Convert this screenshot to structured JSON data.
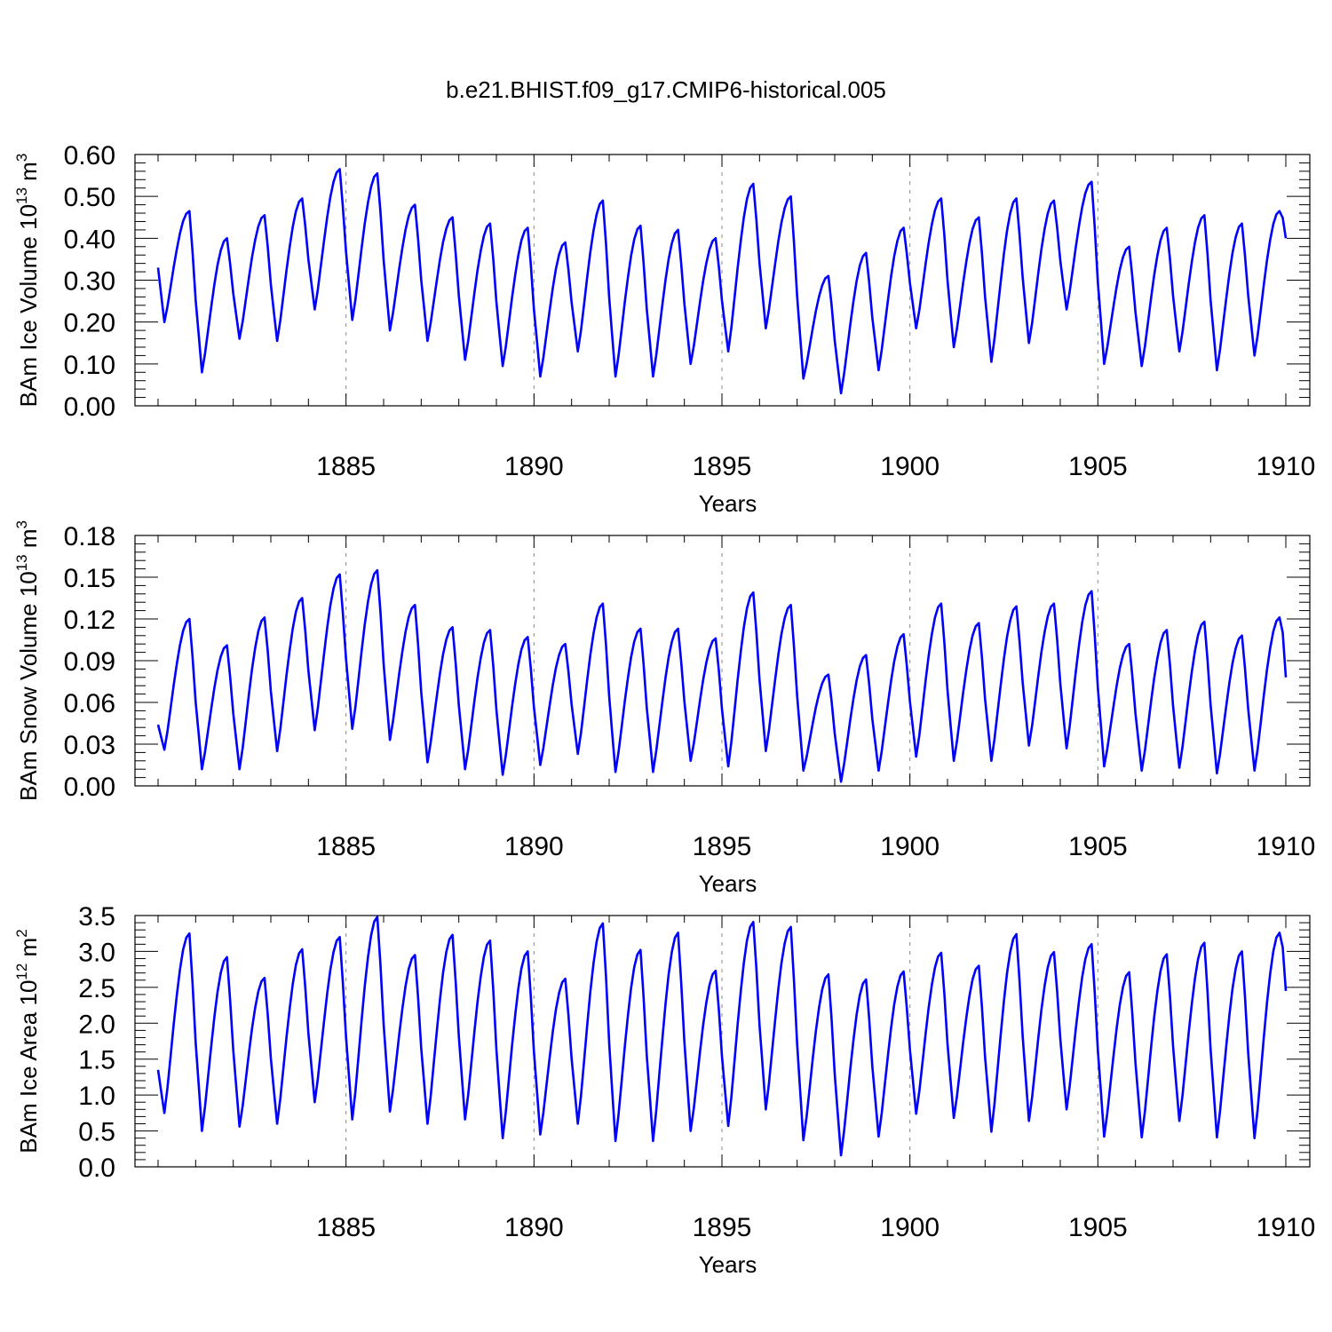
{
  "figure": {
    "title": "b.e21.BHIST.f09_g17.CMIP6-historical.005"
  },
  "chart_data": [
    {
      "type": "line",
      "panel": "ice-volume",
      "ylabel": {
        "main": "BAm Ice Volume 10",
        "exp": "13",
        "unit": " m",
        "unit_exp": "3"
      },
      "xlabel": "Years",
      "xlim": [
        1880.0,
        1910.0
      ],
      "ylim": [
        0.0,
        0.6
      ],
      "yticks": [
        "0.00",
        "0.10",
        "0.20",
        "0.30",
        "0.40",
        "0.50",
        "0.60"
      ],
      "xticks": [
        "1885",
        "1890",
        "1895",
        "1900",
        "1905",
        "1910"
      ],
      "grid": "dashed vertical at labeled years",
      "series": [
        {
          "name": "ice volume",
          "color": "#0000ff",
          "cycles": [
            {
              "year": 1880,
              "peak": 0.465,
              "trough": 0.2
            },
            {
              "year": 1881,
              "peak": 0.4,
              "trough": 0.08
            },
            {
              "year": 1882,
              "peak": 0.455,
              "trough": 0.16
            },
            {
              "year": 1883,
              "peak": 0.495,
              "trough": 0.155
            },
            {
              "year": 1884,
              "peak": 0.565,
              "trough": 0.23
            },
            {
              "year": 1885,
              "peak": 0.555,
              "trough": 0.205
            },
            {
              "year": 1886,
              "peak": 0.48,
              "trough": 0.18
            },
            {
              "year": 1887,
              "peak": 0.45,
              "trough": 0.155
            },
            {
              "year": 1888,
              "peak": 0.435,
              "trough": 0.11
            },
            {
              "year": 1889,
              "peak": 0.425,
              "trough": 0.095
            },
            {
              "year": 1890,
              "peak": 0.39,
              "trough": 0.07
            },
            {
              "year": 1891,
              "peak": 0.49,
              "trough": 0.13
            },
            {
              "year": 1892,
              "peak": 0.43,
              "trough": 0.07
            },
            {
              "year": 1893,
              "peak": 0.42,
              "trough": 0.07
            },
            {
              "year": 1894,
              "peak": 0.4,
              "trough": 0.1
            },
            {
              "year": 1895,
              "peak": 0.53,
              "trough": 0.13
            },
            {
              "year": 1896,
              "peak": 0.5,
              "trough": 0.185
            },
            {
              "year": 1897,
              "peak": 0.31,
              "trough": 0.065
            },
            {
              "year": 1898,
              "peak": 0.365,
              "trough": 0.03
            },
            {
              "year": 1899,
              "peak": 0.425,
              "trough": 0.085
            },
            {
              "year": 1900,
              "peak": 0.495,
              "trough": 0.185
            },
            {
              "year": 1901,
              "peak": 0.45,
              "trough": 0.14
            },
            {
              "year": 1902,
              "peak": 0.495,
              "trough": 0.105
            },
            {
              "year": 1903,
              "peak": 0.49,
              "trough": 0.15
            },
            {
              "year": 1904,
              "peak": 0.535,
              "trough": 0.23
            },
            {
              "year": 1905,
              "peak": 0.38,
              "trough": 0.1
            },
            {
              "year": 1906,
              "peak": 0.425,
              "trough": 0.095
            },
            {
              "year": 1907,
              "peak": 0.455,
              "trough": 0.13
            },
            {
              "year": 1908,
              "peak": 0.435,
              "trough": 0.085
            },
            {
              "year": 1909,
              "peak": 0.465,
              "trough": 0.12
            }
          ],
          "start": 0.33,
          "end": 0.4
        }
      ]
    },
    {
      "type": "line",
      "panel": "snow-volume",
      "ylabel": {
        "main": "BAm Snow Volume 10",
        "exp": "13",
        "unit": " m",
        "unit_exp": "3"
      },
      "xlabel": "Years",
      "xlim": [
        1880.0,
        1910.0
      ],
      "ylim": [
        0.0,
        0.18
      ],
      "yticks": [
        "0.00",
        "0.03",
        "0.06",
        "0.09",
        "0.12",
        "0.15",
        "0.18"
      ],
      "xticks": [
        "1885",
        "1890",
        "1895",
        "1900",
        "1905",
        "1910"
      ],
      "grid": "dashed vertical at labeled years",
      "series": [
        {
          "name": "snow volume",
          "color": "#0000ff",
          "cycles": [
            {
              "year": 1880,
              "peak": 0.12,
              "trough": 0.026
            },
            {
              "year": 1881,
              "peak": 0.101,
              "trough": 0.012
            },
            {
              "year": 1882,
              "peak": 0.121,
              "trough": 0.012
            },
            {
              "year": 1883,
              "peak": 0.135,
              "trough": 0.025
            },
            {
              "year": 1884,
              "peak": 0.152,
              "trough": 0.04
            },
            {
              "year": 1885,
              "peak": 0.155,
              "trough": 0.041
            },
            {
              "year": 1886,
              "peak": 0.13,
              "trough": 0.033
            },
            {
              "year": 1887,
              "peak": 0.114,
              "trough": 0.017
            },
            {
              "year": 1888,
              "peak": 0.112,
              "trough": 0.012
            },
            {
              "year": 1889,
              "peak": 0.107,
              "trough": 0.008
            },
            {
              "year": 1890,
              "peak": 0.102,
              "trough": 0.015
            },
            {
              "year": 1891,
              "peak": 0.131,
              "trough": 0.023
            },
            {
              "year": 1892,
              "peak": 0.113,
              "trough": 0.01
            },
            {
              "year": 1893,
              "peak": 0.113,
              "trough": 0.01
            },
            {
              "year": 1894,
              "peak": 0.106,
              "trough": 0.018
            },
            {
              "year": 1895,
              "peak": 0.139,
              "trough": 0.014
            },
            {
              "year": 1896,
              "peak": 0.13,
              "trough": 0.025
            },
            {
              "year": 1897,
              "peak": 0.08,
              "trough": 0.011
            },
            {
              "year": 1898,
              "peak": 0.094,
              "trough": 0.003
            },
            {
              "year": 1899,
              "peak": 0.109,
              "trough": 0.011
            },
            {
              "year": 1900,
              "peak": 0.131,
              "trough": 0.021
            },
            {
              "year": 1901,
              "peak": 0.117,
              "trough": 0.018
            },
            {
              "year": 1902,
              "peak": 0.129,
              "trough": 0.018
            },
            {
              "year": 1903,
              "peak": 0.131,
              "trough": 0.029
            },
            {
              "year": 1904,
              "peak": 0.14,
              "trough": 0.027
            },
            {
              "year": 1905,
              "peak": 0.102,
              "trough": 0.014
            },
            {
              "year": 1906,
              "peak": 0.112,
              "trough": 0.011
            },
            {
              "year": 1907,
              "peak": 0.118,
              "trough": 0.013
            },
            {
              "year": 1908,
              "peak": 0.108,
              "trough": 0.009
            },
            {
              "year": 1909,
              "peak": 0.121,
              "trough": 0.011
            }
          ],
          "start": 0.044,
          "end": 0.078
        }
      ]
    },
    {
      "type": "line",
      "panel": "ice-area",
      "ylabel": {
        "main": "BAm Ice Area 10",
        "exp": "12",
        "unit": " m",
        "unit_exp": "2"
      },
      "xlabel": "Years",
      "xlim": [
        1880.0,
        1910.0
      ],
      "ylim": [
        0.0,
        3.5
      ],
      "yticks": [
        "0.0",
        "0.5",
        "1.0",
        "1.5",
        "2.0",
        "2.5",
        "3.0",
        "3.5"
      ],
      "xticks": [
        "1885",
        "1890",
        "1895",
        "1900",
        "1905",
        "1910"
      ],
      "grid": "dashed vertical at labeled years",
      "series": [
        {
          "name": "ice area",
          "color": "#0000ff",
          "cycles": [
            {
              "year": 1880,
              "peak": 3.25,
              "trough": 0.75
            },
            {
              "year": 1881,
              "peak": 2.92,
              "trough": 0.5
            },
            {
              "year": 1882,
              "peak": 2.63,
              "trough": 0.56
            },
            {
              "year": 1883,
              "peak": 3.03,
              "trough": 0.6
            },
            {
              "year": 1884,
              "peak": 3.2,
              "trough": 0.9
            },
            {
              "year": 1885,
              "peak": 3.48,
              "trough": 0.66
            },
            {
              "year": 1886,
              "peak": 2.95,
              "trough": 0.77
            },
            {
              "year": 1887,
              "peak": 3.23,
              "trough": 0.6
            },
            {
              "year": 1888,
              "peak": 3.15,
              "trough": 0.66
            },
            {
              "year": 1889,
              "peak": 3.0,
              "trough": 0.4
            },
            {
              "year": 1890,
              "peak": 2.62,
              "trough": 0.45
            },
            {
              "year": 1891,
              "peak": 3.39,
              "trough": 0.6
            },
            {
              "year": 1892,
              "peak": 3.02,
              "trough": 0.36
            },
            {
              "year": 1893,
              "peak": 3.26,
              "trough": 0.36
            },
            {
              "year": 1894,
              "peak": 2.73,
              "trough": 0.5
            },
            {
              "year": 1895,
              "peak": 3.41,
              "trough": 0.57
            },
            {
              "year": 1896,
              "peak": 3.34,
              "trough": 0.8
            },
            {
              "year": 1897,
              "peak": 2.68,
              "trough": 0.37
            },
            {
              "year": 1898,
              "peak": 2.61,
              "trough": 0.16
            },
            {
              "year": 1899,
              "peak": 2.72,
              "trough": 0.42
            },
            {
              "year": 1900,
              "peak": 2.98,
              "trough": 0.74
            },
            {
              "year": 1901,
              "peak": 2.8,
              "trough": 0.68
            },
            {
              "year": 1902,
              "peak": 3.24,
              "trough": 0.49
            },
            {
              "year": 1903,
              "peak": 2.99,
              "trough": 0.64
            },
            {
              "year": 1904,
              "peak": 3.1,
              "trough": 0.8
            },
            {
              "year": 1905,
              "peak": 2.71,
              "trough": 0.42
            },
            {
              "year": 1906,
              "peak": 2.96,
              "trough": 0.41
            },
            {
              "year": 1907,
              "peak": 3.12,
              "trough": 0.64
            },
            {
              "year": 1908,
              "peak": 3.0,
              "trough": 0.41
            },
            {
              "year": 1909,
              "peak": 3.26,
              "trough": 0.4
            }
          ],
          "start": 1.35,
          "end": 2.45
        }
      ]
    }
  ]
}
